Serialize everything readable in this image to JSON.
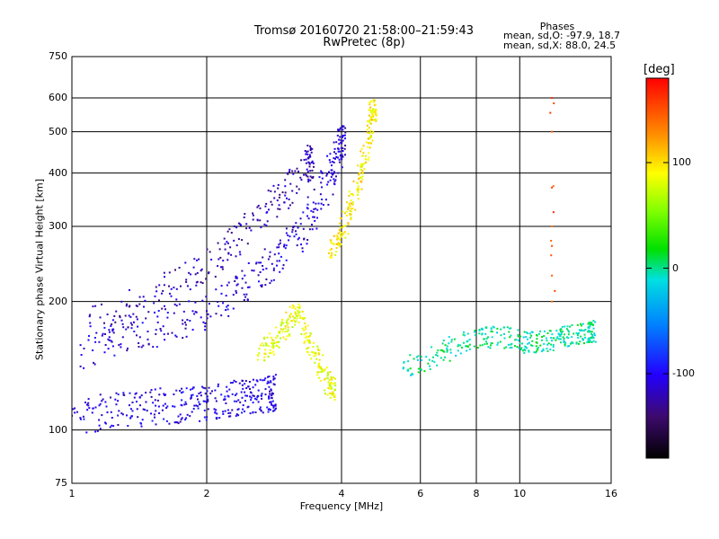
{
  "header": {
    "title_line1": "Tromsø 20160720 21:58:00–21:59:43",
    "title_line2": "RwPretec (8p)"
  },
  "stats": {
    "heading": "Phases",
    "o_line": "mean, sd,O: -97.9, 18.7",
    "x_line": "mean, sd,X:  88.0, 24.5"
  },
  "colorbar": {
    "unit_label": "[deg]",
    "tick_labels": [
      "100",
      "0",
      "-100"
    ],
    "tick_values": [
      100,
      0,
      -100
    ],
    "range": [
      -180,
      180
    ]
  },
  "chart_data": {
    "type": "scatter",
    "title": "Tromsø 20160720 21:58:00–21:59:43",
    "subtitle": "RwPretec (8p)",
    "xlabel": "Frequency [MHz]",
    "ylabel": "Stationary phase Virtual Height [km]",
    "xscale": "log",
    "yscale": "log",
    "xlim": [
      1,
      16
    ],
    "ylim": [
      75,
      750
    ],
    "x_tick_labels": [
      "1",
      "2",
      "4",
      "6",
      "8",
      "10",
      "16"
    ],
    "x_tick_values": [
      1,
      2,
      4,
      6,
      8,
      10,
      16
    ],
    "x_grid_values": [
      1,
      2,
      4,
      6,
      8,
      10,
      16
    ],
    "y_tick_labels": [
      "750",
      "600",
      "500",
      "400",
      "300",
      "200",
      "100",
      "75"
    ],
    "y_tick_values": [
      750,
      600,
      500,
      400,
      300,
      200,
      100,
      75
    ],
    "y_grid_values": [
      100,
      200,
      300,
      400,
      500,
      600
    ],
    "grid": true,
    "color_variable": "phase",
    "color_units": "deg",
    "series": [
      {
        "band": "O-lower",
        "x": [
          1.0,
          1.2,
          1.4,
          1.6,
          1.8,
          2.0,
          2.2,
          2.4,
          2.6,
          2.8
        ],
        "y": [
          108,
          110,
          112,
          114,
          115,
          116,
          118,
          119,
          120,
          122
        ],
        "phase": -105
      },
      {
        "band": "O-main",
        "x": [
          1.05,
          1.3,
          1.6,
          2.0,
          2.4,
          2.8,
          3.2,
          3.5,
          3.8,
          4.0
        ],
        "y": [
          150,
          165,
          175,
          190,
          215,
          245,
          280,
          330,
          400,
          470
        ],
        "phase": -110
      },
      {
        "band": "O-upper",
        "x": [
          1.1,
          1.4,
          1.8,
          2.2,
          2.6,
          3.0,
          3.4
        ],
        "y": [
          175,
          195,
          225,
          265,
          310,
          360,
          420
        ],
        "phase": -120
      },
      {
        "band": "X-trace",
        "x": [
          3.8,
          4.0,
          4.2,
          4.4,
          4.6,
          4.7
        ],
        "y": [
          260,
          290,
          330,
          390,
          470,
          560
        ],
        "phase": 95
      },
      {
        "band": "X-lower",
        "x": [
          2.6,
          2.8,
          3.0,
          3.2,
          3.4,
          3.6,
          3.8
        ],
        "y": [
          150,
          160,
          175,
          190,
          160,
          140,
          125
        ],
        "phase": 85
      },
      {
        "band": "spread-F",
        "x": [
          5.5,
          6.5,
          7.5,
          8.5,
          9.5,
          10.5,
          11.5,
          12.5,
          13.5,
          14.5
        ],
        "y": [
          140,
          150,
          160,
          165,
          165,
          160,
          162,
          165,
          168,
          170
        ],
        "phase": 0
      },
      {
        "band": "vertical-11.8",
        "x": [
          11.8,
          11.8,
          11.8,
          11.8,
          11.8,
          11.8,
          11.8
        ],
        "y": [
          200,
          230,
          270,
          300,
          370,
          500,
          600
        ],
        "phase": 150
      }
    ]
  }
}
